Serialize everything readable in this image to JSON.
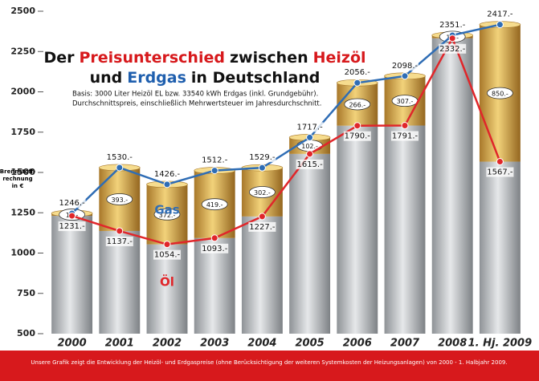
{
  "chart_data": {
    "type": "line",
    "title_lines": [
      [
        {
          "text": "Der",
          "color": "#111111"
        },
        {
          "text": "Preisunterschied",
          "color": "#d7191c"
        },
        {
          "text": "zwischen",
          "color": "#111111"
        },
        {
          "text": "Heizöl",
          "color": "#d7191c"
        }
      ],
      [
        {
          "text": "und",
          "color": "#111111"
        },
        {
          "text": "Erdgas",
          "color": "#1f5fae"
        },
        {
          "text": "in Deutschland",
          "color": "#111111"
        }
      ]
    ],
    "subtitle": [
      "Basis: 3000 Liter Heizöl EL bzw. 33540 kWh Erdgas (inkl. Grundgebühr).",
      "Durchschnittspreis, einschließlich Mehrwertsteuer im Jahresdurchschnitt."
    ],
    "y_label": [
      "Brennstoff-",
      "rechnung",
      "in €"
    ],
    "categories": [
      "2000",
      "2001",
      "2002",
      "2003",
      "2004",
      "2005",
      "2006",
      "2007",
      "2008",
      "1. Hj. 2009"
    ],
    "series": [
      {
        "name": "Gas",
        "color": "#2f6db5",
        "values": [
          1246,
          1530,
          1426,
          1512,
          1529,
          1717,
          2056,
          2098,
          2351,
          2417
        ],
        "value_labels": [
          "1246.-",
          "1530.-",
          "1426.-",
          "1512.-",
          "1529.-",
          "1717.-",
          "2056.-",
          "2098.-",
          "2351.-",
          "2417.-"
        ]
      },
      {
        "name": "Öl",
        "color": "#e0262a",
        "values": [
          1231,
          1137,
          1054,
          1093,
          1227,
          1615,
          1790,
          1791,
          2332,
          1567
        ],
        "value_labels": [
          "1231.-",
          "1137.-",
          "1054.-",
          "1093.-",
          "1227.-",
          "1615.-",
          "1790.-",
          "1791.-",
          "2332.-",
          "1567.-"
        ]
      }
    ],
    "differences": {
      "values": [
        15,
        393,
        372,
        419,
        302,
        102,
        266,
        307,
        19,
        850
      ],
      "value_labels": [
        "15.-",
        "393.-",
        "372.-",
        "419.-",
        "302.-",
        "102.-",
        "266.-",
        "307.-",
        "19.-",
        "850.-"
      ]
    },
    "ylim": [
      500,
      2500
    ],
    "yticks": [
      500,
      750,
      1000,
      1250,
      1500,
      1750,
      2000,
      2250,
      2500
    ],
    "footer": "Unsere Grafik zeigt die Entwicklung der Heizöl- und Erdgaspreise (ohne Berücksichtigung der weiteren Systemkosten der Heizungsanlagen) von 2000 - 1. Halbjahr 2009."
  }
}
